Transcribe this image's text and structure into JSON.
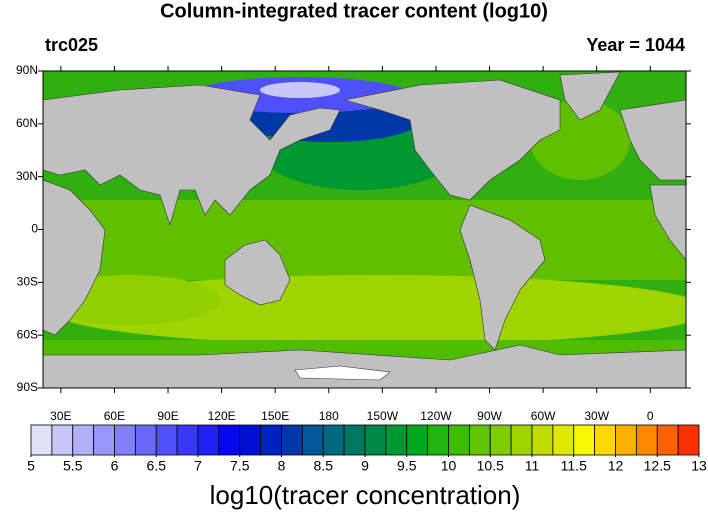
{
  "title": "Column-integrated tracer content (log10)",
  "subtitle_left": "trc025",
  "subtitle_right": "Year = 1044",
  "map": {
    "lonlim": [
      20,
      380
    ],
    "latlim": [
      -90,
      90
    ],
    "lat_ticks": [
      {
        "value": 90,
        "label": "90N"
      },
      {
        "value": 60,
        "label": "60N"
      },
      {
        "value": 30,
        "label": "30N"
      },
      0,
      {
        "value": -30,
        "label": "30S"
      },
      {
        "value": -60,
        "label": "60S"
      },
      {
        "value": -90,
        "label": "90S"
      }
    ],
    "lon_ticks": [
      {
        "value": 30,
        "label": "30E"
      },
      {
        "value": 60,
        "label": "60E"
      },
      {
        "value": 90,
        "label": "90E"
      },
      {
        "value": 120,
        "label": "120E"
      },
      {
        "value": 150,
        "label": "150E"
      },
      180,
      {
        "value": 210,
        "label": "150W"
      },
      {
        "value": 240,
        "label": "120W"
      },
      {
        "value": 270,
        "label": "90W"
      },
      {
        "value": 300,
        "label": "60W"
      },
      {
        "value": 330,
        "label": "30W"
      },
      {
        "value": 360,
        "label": "0"
      }
    ]
  },
  "colorbar": {
    "title": "log10(tracer concentration)",
    "range": [
      5,
      13
    ],
    "ticks": [
      5,
      5.5,
      6,
      6.5,
      7,
      7.5,
      8,
      8.5,
      9,
      9.5,
      10,
      10.5,
      11,
      11.5,
      12,
      12.5,
      13
    ],
    "colors": [
      "#e0e0f8",
      "#c8c8f8",
      "#b0b0f8",
      "#9898f8",
      "#8080f8",
      "#6868f8",
      "#5050f8",
      "#3838f8",
      "#2020f8",
      "#0808f0",
      "#0010d8",
      "#0020c0",
      "#0038a8",
      "#005898",
      "#006880",
      "#007860",
      "#008848",
      "#009830",
      "#00a820",
      "#20b410",
      "#40bc00",
      "#60c400",
      "#80cc00",
      "#a0d400",
      "#c0dc00",
      "#e0e800",
      "#f8f800",
      "#ffd800",
      "#ffb000",
      "#ff8800",
      "#ff6000",
      "#ff3000"
    ]
  }
}
